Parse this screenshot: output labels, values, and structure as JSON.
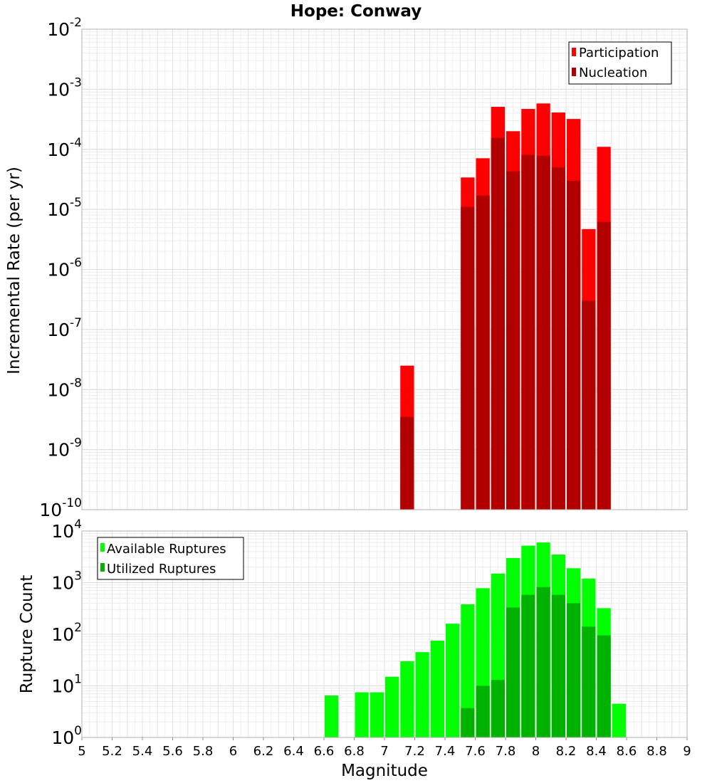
{
  "chart_data": [
    {
      "type": "bar",
      "title": "Hope: Conway",
      "ylabel": "Incremental Rate (per yr)",
      "xlabel": "",
      "yscale": "log",
      "ylim_exponents": [
        -10,
        -2
      ],
      "xlim": [
        5,
        9
      ],
      "bin_width": 0.1,
      "grid": true,
      "legend_position": "top-right",
      "y_tick_labels": [
        {
          "base": "10",
          "exp": "-2"
        },
        {
          "base": "10",
          "exp": "-3"
        },
        {
          "base": "10",
          "exp": "-4"
        },
        {
          "base": "10",
          "exp": "-5"
        },
        {
          "base": "10",
          "exp": "-6"
        },
        {
          "base": "10",
          "exp": "-7"
        },
        {
          "base": "10",
          "exp": "-8"
        },
        {
          "base": "10",
          "exp": "-9"
        },
        {
          "base": "10",
          "exp": "-10"
        }
      ],
      "series": [
        {
          "name": "Participation",
          "color": "#ff0000",
          "points": [
            {
              "x": 7.15,
              "y": 2.5e-08
            },
            {
              "x": 7.55,
              "y": 3.4e-05
            },
            {
              "x": 7.65,
              "y": 7.1e-05
            },
            {
              "x": 7.75,
              "y": 0.00051
            },
            {
              "x": 7.85,
              "y": 0.0002
            },
            {
              "x": 7.95,
              "y": 0.00047
            },
            {
              "x": 8.05,
              "y": 0.00058
            },
            {
              "x": 8.15,
              "y": 0.00041
            },
            {
              "x": 8.25,
              "y": 0.00032
            },
            {
              "x": 8.35,
              "y": 4.7e-06
            },
            {
              "x": 8.45,
              "y": 0.00011
            }
          ]
        },
        {
          "name": "Nucleation",
          "color": "#b20000",
          "points": [
            {
              "x": 7.15,
              "y": 3.5e-09
            },
            {
              "x": 7.55,
              "y": 1.1e-05
            },
            {
              "x": 7.65,
              "y": 1.7e-05
            },
            {
              "x": 7.75,
              "y": 0.000155
            },
            {
              "x": 7.85,
              "y": 4.3e-05
            },
            {
              "x": 7.95,
              "y": 8.1e-05
            },
            {
              "x": 8.05,
              "y": 7.8e-05
            },
            {
              "x": 8.15,
              "y": 5e-05
            },
            {
              "x": 8.25,
              "y": 3e-05
            },
            {
              "x": 8.35,
              "y": 3e-07
            },
            {
              "x": 8.45,
              "y": 6.2e-06
            }
          ]
        }
      ]
    },
    {
      "type": "bar",
      "title": "",
      "xlabel": "Magnitude",
      "ylabel": "Rupture Count",
      "yscale": "log",
      "ylim_exponents": [
        0,
        4
      ],
      "xlim": [
        5,
        9
      ],
      "bin_width": 0.1,
      "grid": true,
      "legend_position": "top-left",
      "x_tick_labels": [
        "5",
        "5.2",
        "5.4",
        "5.6",
        "5.8",
        "6",
        "6.2",
        "6.4",
        "6.6",
        "6.8",
        "7",
        "7.2",
        "7.4",
        "7.6",
        "7.8",
        "8",
        "8.2",
        "8.4",
        "8.6",
        "8.8",
        "9"
      ],
      "y_tick_labels": [
        {
          "base": "10",
          "exp": "4"
        },
        {
          "base": "10",
          "exp": "3"
        },
        {
          "base": "10",
          "exp": "2"
        },
        {
          "base": "10",
          "exp": "1"
        },
        {
          "base": "10",
          "exp": "0"
        }
      ],
      "series": [
        {
          "name": "Available Ruptures",
          "color": "#00ff00",
          "points": [
            {
              "x": 6.65,
              "y": 6.5
            },
            {
              "x": 6.85,
              "y": 7.5
            },
            {
              "x": 6.95,
              "y": 7.5
            },
            {
              "x": 7.05,
              "y": 15
            },
            {
              "x": 7.15,
              "y": 30
            },
            {
              "x": 7.25,
              "y": 45
            },
            {
              "x": 7.35,
              "y": 75
            },
            {
              "x": 7.45,
              "y": 160
            },
            {
              "x": 7.55,
              "y": 380
            },
            {
              "x": 7.65,
              "y": 780
            },
            {
              "x": 7.75,
              "y": 1500
            },
            {
              "x": 7.85,
              "y": 3000
            },
            {
              "x": 7.95,
              "y": 5200
            },
            {
              "x": 8.05,
              "y": 6000
            },
            {
              "x": 8.15,
              "y": 3500
            },
            {
              "x": 8.25,
              "y": 1900
            },
            {
              "x": 8.35,
              "y": 1200
            },
            {
              "x": 8.45,
              "y": 320
            },
            {
              "x": 8.55,
              "y": 4.5
            }
          ]
        },
        {
          "name": "Utilized Ruptures",
          "color": "#00b200",
          "points": [
            {
              "x": 7.15,
              "y": 1
            },
            {
              "x": 7.45,
              "y": 1
            },
            {
              "x": 7.55,
              "y": 3.7
            },
            {
              "x": 7.65,
              "y": 10
            },
            {
              "x": 7.75,
              "y": 13
            },
            {
              "x": 7.85,
              "y": 330
            },
            {
              "x": 7.95,
              "y": 580
            },
            {
              "x": 8.05,
              "y": 820
            },
            {
              "x": 8.15,
              "y": 580
            },
            {
              "x": 8.25,
              "y": 400
            },
            {
              "x": 8.35,
              "y": 140
            },
            {
              "x": 8.45,
              "y": 95
            }
          ]
        }
      ]
    }
  ]
}
